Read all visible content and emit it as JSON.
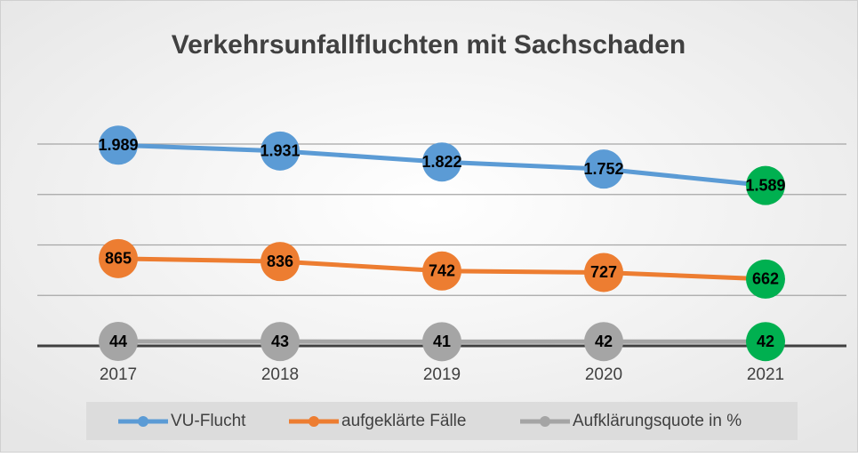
{
  "chart_data": {
    "type": "line",
    "title": "Verkehrsunfallfluchten mit Sachschaden",
    "categories": [
      "2017",
      "2018",
      "2019",
      "2020",
      "2021"
    ],
    "series": [
      {
        "name": "VU-Flucht",
        "color": "#5b9bd5",
        "values": [
          1989,
          1931,
          1822,
          1752,
          1589
        ],
        "value_labels": [
          "1.989",
          "1.931",
          "1.822",
          "1.752",
          "1.589"
        ],
        "marker_colors": [
          "#5b9bd5",
          "#5b9bd5",
          "#5b9bd5",
          "#5b9bd5",
          "#00b050"
        ]
      },
      {
        "name": "aufgeklärte Fälle",
        "color": "#ed7d31",
        "values": [
          865,
          836,
          742,
          727,
          662
        ],
        "marker_colors": [
          "#ed7d31",
          "#ed7d31",
          "#ed7d31",
          "#ed7d31",
          "#00b050"
        ]
      },
      {
        "name": "Aufklärungsquote in %",
        "color": "#a5a5a5",
        "values": [
          44,
          43,
          41,
          42,
          42
        ],
        "marker_colors": [
          "#a5a5a5",
          "#a5a5a5",
          "#a5a5a5",
          "#a5a5a5",
          "#00b050"
        ]
      }
    ],
    "ylim": [
      0,
      2000
    ],
    "yticks": [
      0,
      500,
      1000,
      1500,
      2000
    ],
    "grid": true,
    "legend": "bottom"
  }
}
